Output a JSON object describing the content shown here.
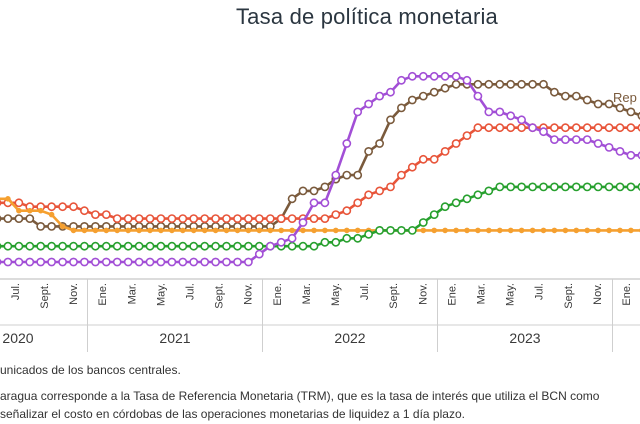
{
  "chart_data": {
    "type": "line",
    "title": "Tasa de política monetaria",
    "xlabel": "",
    "ylabel": "",
    "x_month_tick_labels": [
      "Jul.",
      "Sept.",
      "Nov.",
      "Ene.",
      "Mar.",
      "May.",
      "Jul.",
      "Sept.",
      "Nov.",
      "Ene.",
      "Mar.",
      "May.",
      "Jul.",
      "Sept.",
      "Nov.",
      "Ene.",
      "Mar.",
      "May.",
      "Jul.",
      "Sept.",
      "Nov.",
      "Ene."
    ],
    "x_year_labels": [
      "2020",
      "2021",
      "2022",
      "2023"
    ],
    "series_label_partial": "Rep",
    "grid": false,
    "series": [
      {
        "color": "#7a5a3c",
        "values": [
          3.25,
          3.25,
          3.25,
          3.25,
          2.75,
          2.75,
          2.75,
          2.75,
          2.75,
          2.75,
          2.75,
          2.75,
          2.75,
          2.75,
          2.75,
          2.75,
          2.75,
          2.75,
          2.75,
          2.75,
          2.75,
          2.75,
          2.75,
          2.75,
          2.75,
          2.75,
          3.25,
          4.5,
          5.0,
          5.0,
          5.25,
          5.75,
          6.0,
          6.0,
          7.5,
          8.0,
          9.5,
          10.25,
          10.75,
          11.0,
          11.25,
          11.5,
          11.75,
          11.75,
          11.75,
          11.75,
          11.75,
          11.75,
          11.75,
          11.75,
          11.75,
          11.25,
          11.0,
          11.0,
          10.75,
          10.5,
          10.5,
          10.25,
          10.0,
          9.75
        ],
        "markers": true
      },
      {
        "color": "#e8553a",
        "values": [
          4.25,
          4.25,
          4.25,
          4.0,
          4.0,
          4.0,
          4.0,
          4.0,
          3.75,
          3.5,
          3.5,
          3.25,
          3.25,
          3.25,
          3.25,
          3.25,
          3.25,
          3.25,
          3.25,
          3.25,
          3.25,
          3.25,
          3.25,
          3.25,
          3.25,
          3.25,
          3.25,
          3.25,
          3.25,
          3.25,
          3.25,
          3.5,
          3.75,
          4.25,
          4.75,
          5.0,
          5.25,
          6.0,
          6.5,
          7.0,
          7.0,
          7.5,
          8.0,
          8.5,
          9.0,
          9.0,
          9.0,
          9.0,
          9.0,
          9.0,
          9.0,
          9.0,
          9.0,
          9.0,
          9.0,
          9.0,
          9.0,
          9.0,
          9.0,
          9.0
        ],
        "markers": true
      },
      {
        "color": "#f5a030",
        "values": [
          4.5,
          4.5,
          3.75,
          3.75,
          3.75,
          3.5,
          2.75,
          2.5,
          2.5,
          2.5,
          2.5,
          2.5,
          2.5,
          2.5,
          2.5,
          2.5,
          2.5,
          2.5,
          2.5,
          2.5,
          2.5,
          2.5,
          2.5,
          2.5,
          2.5,
          2.5,
          2.5,
          2.5,
          2.5,
          2.5,
          2.5,
          2.5,
          2.5,
          2.5,
          2.5,
          2.5,
          2.5,
          2.5,
          2.5,
          2.5,
          2.5,
          2.5,
          2.5,
          2.5,
          2.5,
          2.5,
          2.5,
          2.5,
          2.5,
          2.5,
          2.5,
          2.5,
          2.5,
          2.5,
          2.5,
          2.5,
          2.5,
          2.5,
          2.5,
          2.5
        ],
        "markers": false
      },
      {
        "color": "#27a02e",
        "values": [
          1.5,
          1.5,
          1.5,
          1.5,
          1.5,
          1.5,
          1.5,
          1.5,
          1.5,
          1.5,
          1.5,
          1.5,
          1.5,
          1.5,
          1.5,
          1.5,
          1.5,
          1.5,
          1.5,
          1.5,
          1.5,
          1.5,
          1.5,
          1.5,
          1.5,
          1.5,
          1.5,
          1.5,
          1.5,
          1.5,
          1.75,
          1.75,
          2.0,
          2.0,
          2.25,
          2.5,
          2.5,
          2.5,
          2.5,
          3.0,
          3.5,
          4.0,
          4.25,
          4.5,
          4.75,
          5.0,
          5.25,
          5.25,
          5.25,
          5.25,
          5.25,
          5.25,
          5.25,
          5.25,
          5.25,
          5.25,
          5.25,
          5.25,
          5.25,
          5.25
        ],
        "markers": true
      },
      {
        "color": "#a24fd6",
        "values": [
          0.5,
          0.5,
          0.5,
          0.5,
          0.5,
          0.5,
          0.5,
          0.5,
          0.5,
          0.5,
          0.5,
          0.5,
          0.5,
          0.5,
          0.5,
          0.5,
          0.5,
          0.5,
          0.5,
          0.5,
          0.5,
          0.5,
          0.5,
          0.5,
          1.0,
          1.5,
          1.75,
          2.0,
          3.0,
          4.25,
          4.25,
          6.0,
          8.0,
          10.0,
          10.5,
          11.0,
          11.25,
          12.0,
          12.25,
          12.25,
          12.25,
          12.25,
          12.25,
          12.0,
          11.0,
          10.0,
          10.0,
          9.75,
          9.5,
          9.0,
          8.75,
          8.25,
          8.25,
          8.25,
          8.25,
          8.0,
          7.75,
          7.5,
          7.25,
          7.25
        ],
        "markers": true
      }
    ]
  },
  "notes": {
    "source": "unicados de los bancos centrales.",
    "line1": "aragua corresponde a la Tasa de Referencia Monetaria (TRM), que es la tasa de interés que utiliza el BCN como",
    "line2": "señalizar el costo en córdobas de las operaciones monetarias de liquidez a 1 día plazo."
  }
}
